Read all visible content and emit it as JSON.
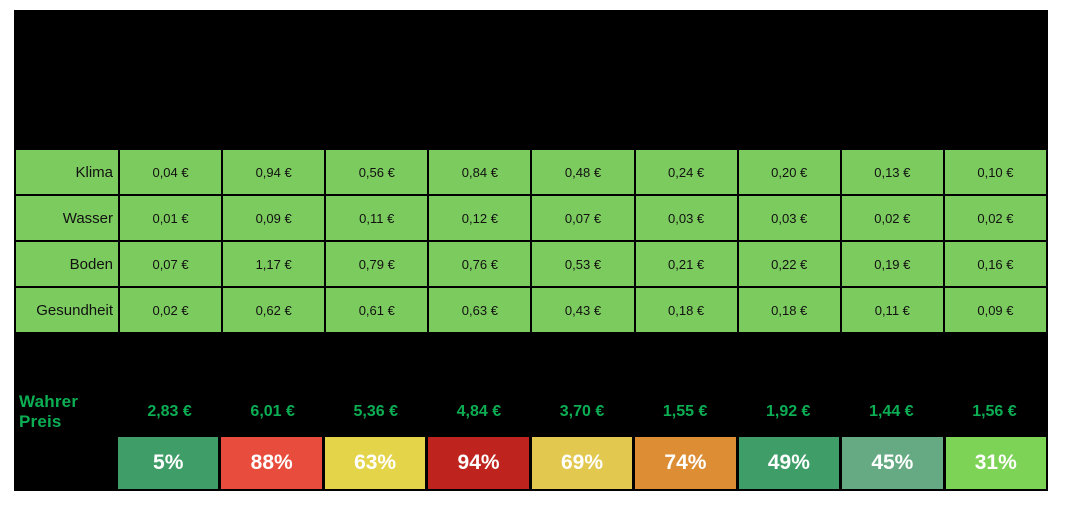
{
  "colors": {
    "page_background": "#ffffff",
    "canvas_background": "#000000",
    "table_cell_green": "#7ccb5e",
    "cell_text": "#111111",
    "true_price_green": "#0cae53",
    "percent_text": "#ffffff"
  },
  "chart_data": {
    "type": "table",
    "title": "",
    "header_note": "header band is solid black, no visible column titles",
    "currency": "EUR",
    "row_labels": [
      "Klima",
      "Wasser",
      "Boden",
      "Gesundheit"
    ],
    "series": [
      {
        "name": "Klima",
        "values": [
          0.04,
          0.94,
          0.56,
          0.84,
          0.48,
          0.24,
          0.2,
          0.13,
          0.1
        ],
        "display": [
          "0,04 €",
          "0,94 €",
          "0,56 €",
          "0,84 €",
          "0,48 €",
          "0,24 €",
          "0,20 €",
          "0,13 €",
          "0,10 €"
        ]
      },
      {
        "name": "Wasser",
        "values": [
          0.01,
          0.09,
          0.11,
          0.12,
          0.07,
          0.03,
          0.03,
          0.02,
          0.02
        ],
        "display": [
          "0,01 €",
          "0,09 €",
          "0,11 €",
          "0,12 €",
          "0,07 €",
          "0,03 €",
          "0,03 €",
          "0,02 €",
          "0,02 €"
        ]
      },
      {
        "name": "Boden",
        "values": [
          0.07,
          1.17,
          0.79,
          0.76,
          0.53,
          0.21,
          0.22,
          0.19,
          0.16
        ],
        "display": [
          "0,07 €",
          "1,17 €",
          "0,79 €",
          "0,76 €",
          "0,53 €",
          "0,21 €",
          "0,22 €",
          "0,19 €",
          "0,16 €"
        ]
      },
      {
        "name": "Gesundheit",
        "values": [
          0.02,
          0.62,
          0.61,
          0.63,
          0.43,
          0.18,
          0.18,
          0.11,
          0.09
        ],
        "display": [
          "0,02 €",
          "0,62 €",
          "0,61 €",
          "0,63 €",
          "0,43 €",
          "0,18 €",
          "0,18 €",
          "0,11 €",
          "0,09 €"
        ]
      }
    ],
    "true_price": {
      "label": "Wahrer Preis",
      "values": [
        2.83,
        6.01,
        5.36,
        4.84,
        3.7,
        1.55,
        1.92,
        1.44,
        1.56
      ],
      "display": [
        "2,83 €",
        "6,01 €",
        "5,36 €",
        "4,84 €",
        "3,70 €",
        "1,55 €",
        "1,92 €",
        "1,44 €",
        "1,56 €"
      ]
    },
    "surcharge_percent": {
      "values": [
        5,
        88,
        63,
        94,
        69,
        74,
        49,
        45,
        31
      ],
      "cells": [
        {
          "value": "5%",
          "color": "#3f9e68"
        },
        {
          "value": "88%",
          "color": "#e74c3c"
        },
        {
          "value": "63%",
          "color": "#e4d44a"
        },
        {
          "value": "94%",
          "color": "#be231d"
        },
        {
          "value": "69%",
          "color": "#e2c84f"
        },
        {
          "value": "74%",
          "color": "#dd8e35"
        },
        {
          "value": "49%",
          "color": "#3f9e68"
        },
        {
          "value": "45%",
          "color": "#65aa82"
        },
        {
          "value": "31%",
          "color": "#7dd356"
        }
      ]
    }
  }
}
